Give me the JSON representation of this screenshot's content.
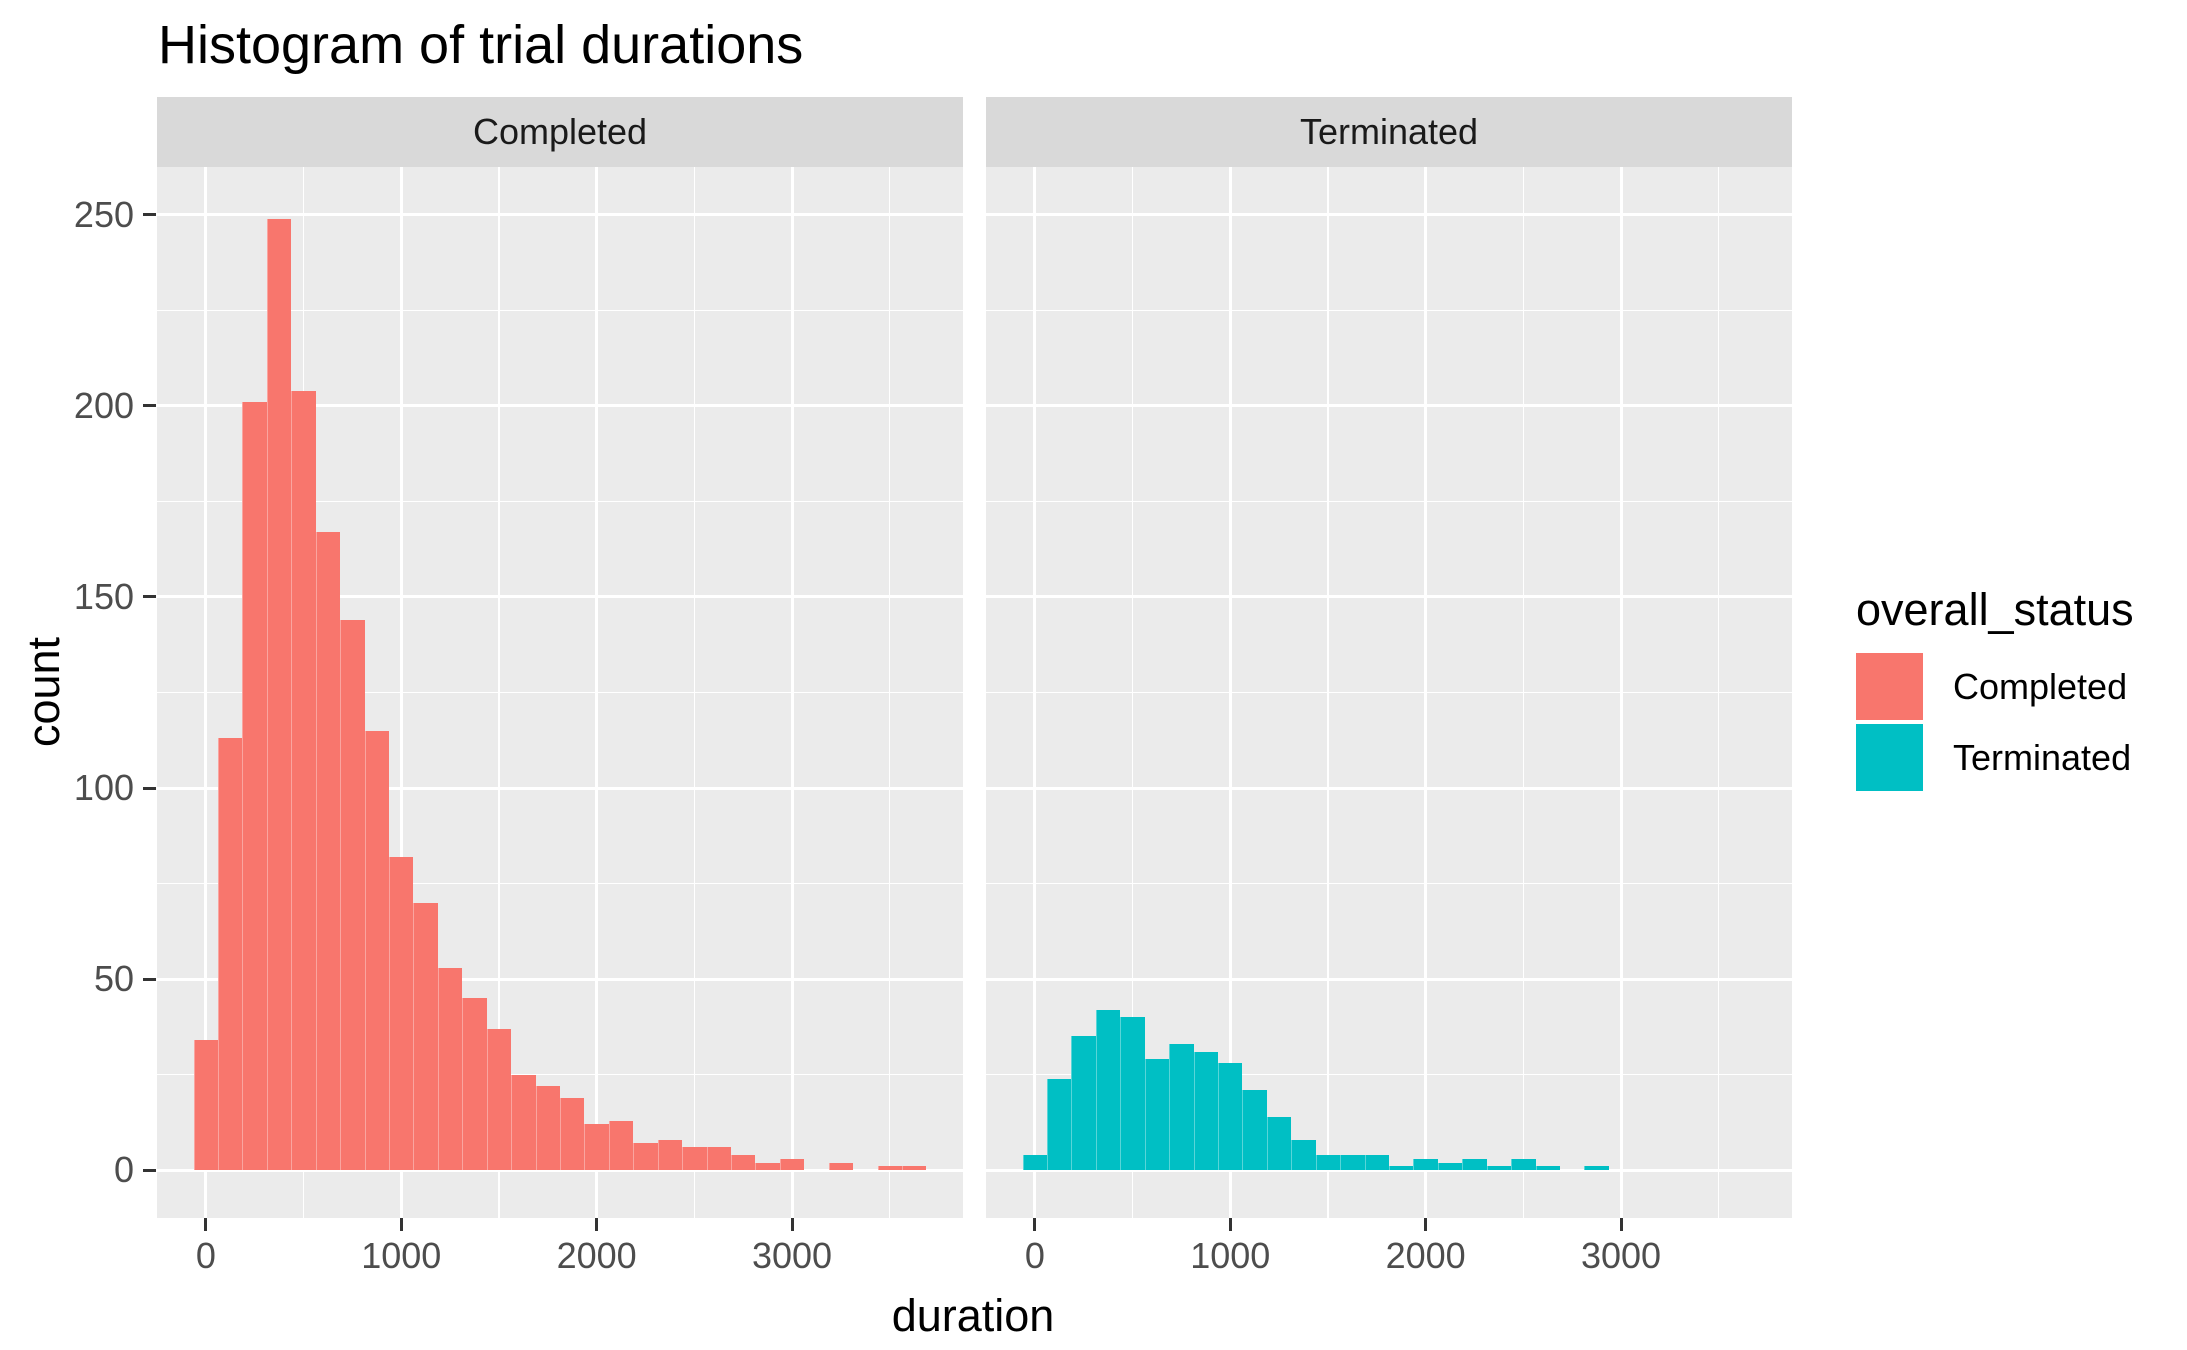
{
  "title": "Histogram of trial durations",
  "axes": {
    "x_title": "duration",
    "y_title": "count"
  },
  "legend": {
    "title": "overall_status",
    "items": [
      {
        "label": "Completed",
        "color": "#F8766D"
      },
      {
        "label": "Terminated",
        "color": "#00BFC4"
      }
    ]
  },
  "colors": {
    "completed": "#F8766D",
    "terminated": "#00BFC4",
    "panel_background": "#EBEBEB",
    "strip_background": "#D9D9D9",
    "gridline": "#FFFFFF",
    "tick_text": "#4D4D4D",
    "strip_text": "#1A1A1A"
  },
  "chart_data": {
    "type": "bar",
    "subtype": "faceted_histogram",
    "title": "Histogram of trial durations",
    "xlabel": "duration",
    "ylabel": "count",
    "grid": true,
    "legend_position": "right",
    "bin_width": 125,
    "bin_start": -62.5,
    "bin_centers": [
      0,
      125,
      250,
      375,
      500,
      625,
      750,
      875,
      1000,
      1125,
      1250,
      1375,
      1500,
      1625,
      1750,
      1875,
      2000,
      2125,
      2250,
      2375,
      2500,
      2625,
      2750,
      2875,
      3000,
      3125,
      3250,
      3375,
      3500,
      3625
    ],
    "x_ticks": [
      0,
      1000,
      2000,
      3000
    ],
    "x_minor_ticks": [
      500,
      1500,
      2500,
      3500
    ],
    "y_ticks": [
      0,
      50,
      100,
      150,
      200,
      250
    ],
    "y_minor_ticks": [
      25,
      75,
      125,
      175,
      225
    ],
    "x_range": [
      -250,
      3875
    ],
    "y_range": [
      -12.5,
      262.5
    ],
    "facets": [
      {
        "label": "Completed",
        "color": "#F8766D",
        "counts": [
          34,
          113,
          201,
          249,
          204,
          167,
          144,
          115,
          82,
          70,
          53,
          45,
          37,
          25,
          22,
          19,
          12,
          13,
          7,
          8,
          6,
          6,
          4,
          2,
          3,
          0,
          2,
          0,
          1,
          1
        ]
      },
      {
        "label": "Terminated",
        "color": "#00BFC4",
        "counts": [
          4,
          24,
          35,
          42,
          40,
          29,
          33,
          31,
          28,
          21,
          14,
          8,
          4,
          4,
          4,
          1,
          3,
          2,
          3,
          1,
          3,
          1,
          0,
          1,
          0,
          0,
          0,
          0,
          0,
          0
        ]
      }
    ]
  }
}
